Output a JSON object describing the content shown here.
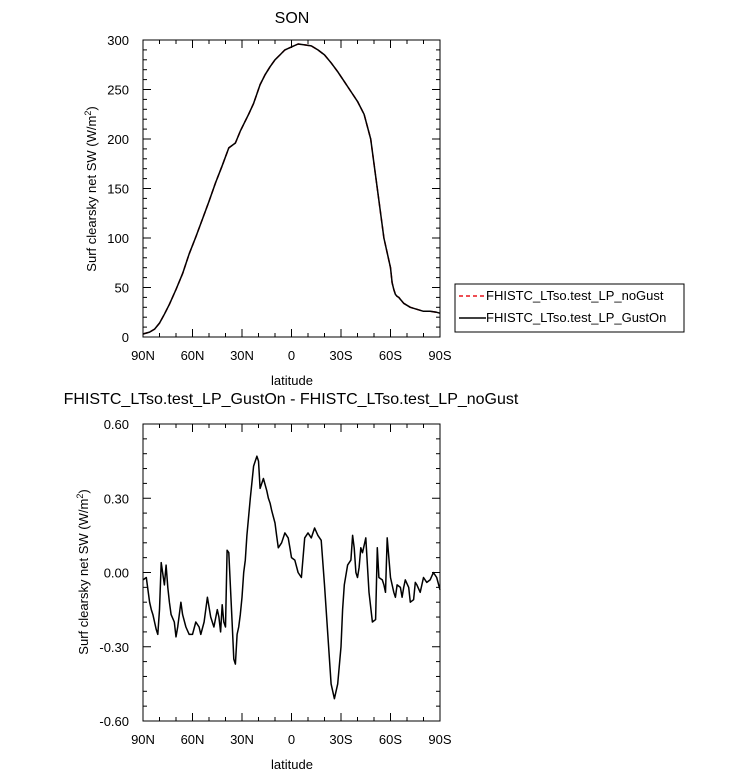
{
  "chart_data": [
    {
      "type": "line",
      "title": "SON",
      "xlabel": "latitude",
      "ylabel": "Surf clearsky net SW (W/m",
      "ylabel_sup": "2",
      "ylabel_end": ")",
      "xlim": [
        -90,
        90
      ],
      "ylim": [
        0,
        300
      ],
      "xticks": [
        -90,
        -60,
        -30,
        0,
        30,
        60,
        90
      ],
      "xtick_labels": [
        "90N",
        "60N",
        "30N",
        "0",
        "30S",
        "60S",
        "90S"
      ],
      "yticks": [
        0,
        50,
        100,
        150,
        200,
        250,
        300
      ],
      "ytick_labels": [
        "0",
        "50",
        "100",
        "150",
        "200",
        "250",
        "300"
      ],
      "legend": [
        {
          "label": "FHISTC_LTso.test_LP_noGust",
          "color": "#e8141b",
          "dash": "dashed"
        },
        {
          "label": "FHISTC_LTso.test_LP_GustOn",
          "color": "#000000",
          "dash": "solid"
        }
      ],
      "series": [
        {
          "name": "FHISTC_LTso.test_LP_noGust",
          "color": "#e8141b",
          "x": [
            -90,
            -86,
            -83,
            -80,
            -77,
            -74,
            -70,
            -66,
            -62,
            -58,
            -54,
            -50,
            -46,
            -42,
            -38,
            -34,
            -31,
            -29,
            -26,
            -23,
            -19,
            -16,
            -13,
            -10,
            -7,
            -4,
            0,
            4,
            8,
            12,
            16,
            20,
            24,
            28,
            32,
            36,
            40,
            44,
            48,
            52,
            56,
            60,
            61,
            62,
            63,
            64,
            65,
            66,
            67,
            68,
            70,
            72,
            74,
            76,
            80,
            84,
            88,
            90
          ],
          "y": [
            3,
            5,
            8,
            14,
            23,
            33,
            48,
            64,
            84,
            101,
            119,
            137,
            156,
            173,
            191,
            196,
            208,
            215,
            225,
            236,
            255,
            265,
            273,
            280,
            285,
            290,
            293,
            296,
            295,
            294,
            290,
            285,
            277,
            268,
            258,
            248,
            238,
            225,
            200,
            150,
            100,
            70,
            55,
            48,
            43,
            41,
            40,
            38,
            36,
            34,
            32,
            30,
            29,
            28,
            26,
            26,
            25,
            24
          ]
        },
        {
          "name": "FHISTC_LTso.test_LP_GustOn",
          "color": "#000000",
          "x": [
            -90,
            -86,
            -83,
            -80,
            -77,
            -74,
            -70,
            -66,
            -62,
            -58,
            -54,
            -50,
            -46,
            -42,
            -38,
            -34,
            -31,
            -29,
            -26,
            -23,
            -19,
            -16,
            -13,
            -10,
            -7,
            -4,
            0,
            4,
            8,
            12,
            16,
            20,
            24,
            28,
            32,
            36,
            40,
            44,
            48,
            52,
            56,
            60,
            61,
            62,
            63,
            64,
            65,
            66,
            67,
            68,
            70,
            72,
            74,
            76,
            80,
            84,
            88,
            90
          ],
          "y": [
            3,
            5,
            8,
            14,
            23,
            33,
            48,
            64,
            84,
            101,
            119,
            137,
            156,
            173,
            191,
            196,
            208,
            215,
            225,
            236,
            255,
            265,
            273,
            280,
            285,
            290,
            293,
            296,
            295,
            294,
            290,
            285,
            277,
            268,
            258,
            248,
            238,
            225,
            200,
            150,
            100,
            70,
            55,
            48,
            43,
            41,
            40,
            38,
            36,
            34,
            32,
            30,
            29,
            28,
            26,
            26,
            25,
            24
          ]
        }
      ]
    },
    {
      "type": "line",
      "title": "FHISTC_LTso.test_LP_GustOn - FHISTC_LTso.test_LP_noGust",
      "xlabel": "latitude",
      "ylabel": "Surf clearsky net SW (W/m",
      "ylabel_sup": "2",
      "ylabel_end": ")",
      "xlim": [
        -90,
        90
      ],
      "ylim": [
        -0.6,
        0.6
      ],
      "xticks": [
        -90,
        -60,
        -30,
        0,
        30,
        60,
        90
      ],
      "xtick_labels": [
        "90N",
        "60N",
        "30N",
        "0",
        "30S",
        "60S",
        "90S"
      ],
      "yticks": [
        -0.6,
        -0.3,
        0,
        0.3,
        0.6
      ],
      "ytick_labels": [
        "-0.60",
        "-0.30",
        "0.00",
        "0.30",
        "0.60"
      ],
      "series": [
        {
          "name": "FHISTC_LTso.test_LP_GustOn - FHISTC_LTso.test_LP_noGust",
          "color": "#000000",
          "x": [
            -90,
            -88,
            -86,
            -85,
            -84,
            -82,
            -81,
            -80,
            -79,
            -77,
            -76,
            -75,
            -74,
            -73,
            -71,
            -70,
            -69,
            -67,
            -66,
            -64,
            -62,
            -60,
            -58,
            -56,
            -55,
            -53,
            -51,
            -49,
            -47,
            -45,
            -44,
            -43,
            -42,
            -41,
            -40,
            -39,
            -38,
            -36,
            -35,
            -34,
            -33,
            -32,
            -31,
            -30,
            -29,
            -28,
            -27,
            -25,
            -23,
            -21,
            -20,
            -19,
            -17,
            -15,
            -14,
            -13,
            -12,
            -10,
            -9,
            -8,
            -6,
            -4,
            -2,
            -1,
            0,
            2,
            4,
            6,
            8,
            10,
            12,
            14,
            16,
            18,
            20,
            22,
            24,
            26,
            28,
            30,
            31,
            32,
            34,
            36,
            37,
            38,
            39,
            40,
            41,
            42,
            43,
            45,
            47,
            49,
            51,
            52,
            53,
            55,
            56,
            57,
            58,
            60,
            62,
            63,
            64,
            66,
            67,
            68,
            69,
            71,
            72,
            74,
            75,
            76,
            78,
            80,
            82,
            84,
            86,
            88,
            90
          ],
          "y": [
            -0.03,
            -0.02,
            -0.12,
            -0.15,
            -0.17,
            -0.23,
            -0.25,
            -0.15,
            0.04,
            -0.05,
            0.03,
            -0.06,
            -0.12,
            -0.17,
            -0.2,
            -0.26,
            -0.22,
            -0.12,
            -0.17,
            -0.22,
            -0.25,
            -0.25,
            -0.2,
            -0.22,
            -0.25,
            -0.2,
            -0.1,
            -0.18,
            -0.22,
            -0.15,
            -0.18,
            -0.24,
            -0.13,
            -0.2,
            -0.22,
            0.09,
            0.08,
            -0.2,
            -0.35,
            -0.37,
            -0.25,
            -0.22,
            -0.17,
            -0.1,
            0,
            0.05,
            0.15,
            0.3,
            0.43,
            0.47,
            0.45,
            0.34,
            0.38,
            0.33,
            0.3,
            0.28,
            0.25,
            0.2,
            0.15,
            0.1,
            0.12,
            0.16,
            0.14,
            0.1,
            0.06,
            0.05,
            0,
            -0.02,
            0.14,
            0.16,
            0.14,
            0.18,
            0.15,
            0.13,
            -0.05,
            -0.25,
            -0.45,
            -0.51,
            -0.45,
            -0.3,
            -0.15,
            -0.05,
            0.03,
            0.05,
            0.15,
            0.1,
            0.0,
            -0.02,
            0.02,
            0.1,
            0.08,
            0.14,
            -0.08,
            -0.2,
            -0.19,
            0.1,
            -0.02,
            -0.03,
            -0.05,
            -0.08,
            0.14,
            -0.02,
            -0.08,
            -0.1,
            -0.05,
            -0.06,
            -0.1,
            -0.06,
            -0.03,
            -0.06,
            -0.12,
            -0.11,
            -0.04,
            -0.05,
            -0.08,
            -0.02,
            -0.04,
            -0.03,
            0.0,
            -0.02,
            -0.07
          ]
        }
      ]
    }
  ]
}
